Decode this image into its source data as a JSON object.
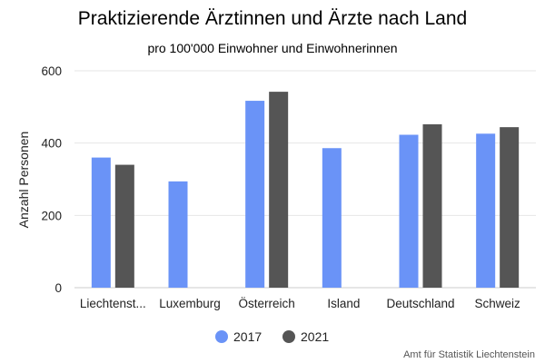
{
  "colors": {
    "series_2017": "#6a93f7",
    "series_2021": "#555555"
  },
  "chart_data": {
    "type": "bar",
    "title": "Praktizierende Ärztinnen und Ärzte nach Land",
    "subtitle": "pro 100'000 Einwohner und Einwohnerinnen",
    "xlabel": "",
    "ylabel": "Anzahl Personen",
    "ylim": [
      0,
      600
    ],
    "yticks": [
      0,
      200,
      400,
      600
    ],
    "grid": true,
    "legend_position": "bottom",
    "categories": [
      "Liechtenst...",
      "Luxemburg",
      "Österreich",
      "Island",
      "Deutschland",
      "Schweiz"
    ],
    "series": [
      {
        "name": "2017",
        "values": [
          360,
          294,
          517,
          386,
          423,
          426
        ]
      },
      {
        "name": "2021",
        "values": [
          340,
          null,
          542,
          null,
          452,
          444
        ]
      }
    ],
    "source": "Amt für Statistik Liechtenstein"
  }
}
